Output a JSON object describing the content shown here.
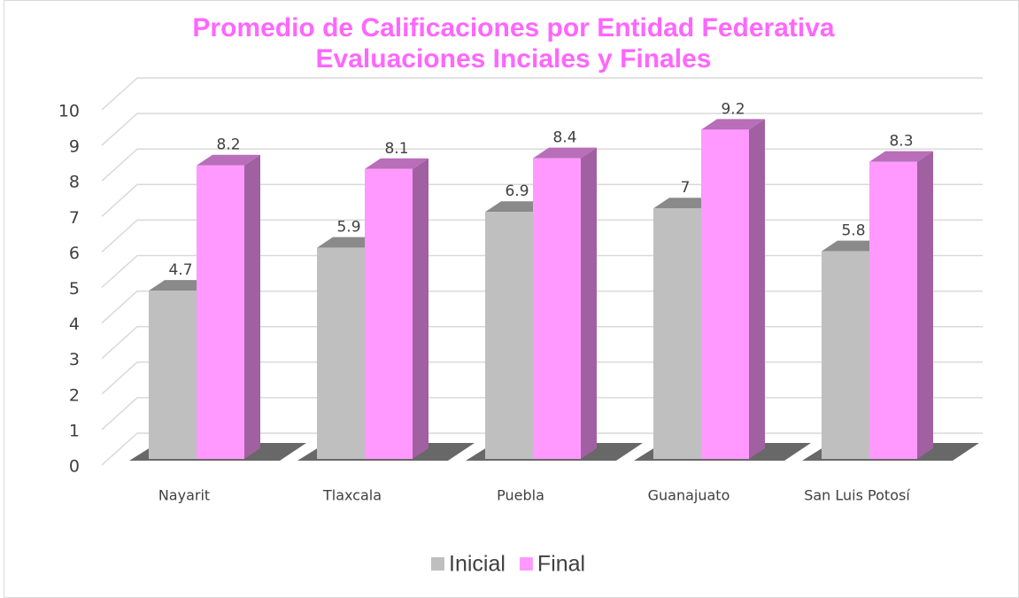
{
  "chart_data": {
    "type": "bar3d",
    "title": "Promedio de Calificaciones por Entidad Federativa",
    "subtitle": "Evaluaciones Inciales y Finales",
    "categories": [
      "Nayarit",
      "Tlaxcala",
      "Puebla",
      "Guanajuato",
      "San Luis Potosí"
    ],
    "series": [
      {
        "name": "Inicial",
        "color": "#bfbfbf",
        "values": [
          4.7,
          5.9,
          6.9,
          7,
          5.8
        ]
      },
      {
        "name": "Final",
        "color": "#ff99ff",
        "values": [
          8.2,
          8.1,
          8.4,
          9.2,
          8.3
        ]
      }
    ],
    "ylim": [
      0,
      10
    ],
    "yticks": [
      0,
      1,
      2,
      3,
      4,
      5,
      6,
      7,
      8,
      9,
      10
    ],
    "grid": true,
    "legend": "bottom"
  }
}
